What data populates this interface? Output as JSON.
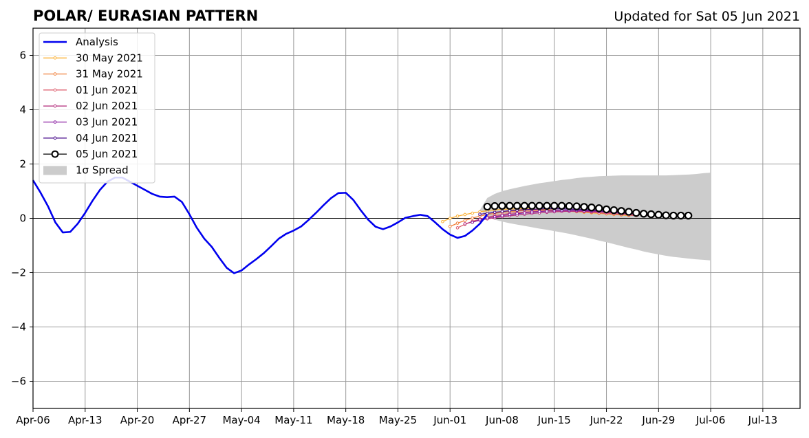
{
  "header": {
    "title": "POLAR/ EURASIAN  PATTERN",
    "updated": "Updated for Sat 05 Jun 2021"
  },
  "chart_data": {
    "type": "line",
    "title": "POLAR/ EURASIAN  PATTERN",
    "xlabel": "",
    "ylabel": "",
    "x_start": "2021-04-06",
    "x_end": "2021-07-18",
    "ylim": [
      -7,
      7
    ],
    "yticks": [
      -6,
      -4,
      -2,
      0,
      2,
      4,
      6
    ],
    "ytick_labels": [
      "−6",
      "−4",
      "−2",
      "0",
      "2",
      "4",
      "6"
    ],
    "xticks": [
      "2021-04-06",
      "2021-04-13",
      "2021-04-20",
      "2021-04-27",
      "2021-05-04",
      "2021-05-11",
      "2021-05-18",
      "2021-05-25",
      "2021-06-01",
      "2021-06-08",
      "2021-06-15",
      "2021-06-22",
      "2021-06-29",
      "2021-07-06",
      "2021-07-13"
    ],
    "xtick_labels": [
      "Apr-06",
      "Apr-13",
      "Apr-20",
      "Apr-27",
      "May-04",
      "May-11",
      "May-18",
      "May-25",
      "Jun-01",
      "Jun-08",
      "Jun-15",
      "Jun-22",
      "Jun-29",
      "Jul-06",
      "Jul-13"
    ],
    "grid": true,
    "legend_position": "top-left",
    "analysis": {
      "name": "Analysis",
      "color": "#0000ee",
      "start_date": "2021-04-06",
      "values": [
        1.4,
        0.95,
        0.45,
        -0.15,
        -0.52,
        -0.5,
        -0.2,
        0.2,
        0.65,
        1.05,
        1.35,
        1.5,
        1.5,
        1.35,
        1.2,
        1.05,
        0.9,
        0.8,
        0.78,
        0.8,
        0.6,
        0.15,
        -0.35,
        -0.75,
        -1.05,
        -1.45,
        -1.82,
        -2.02,
        -1.92,
        -1.7,
        -1.5,
        -1.28,
        -1.02,
        -0.75,
        -0.57,
        -0.45,
        -0.3,
        -0.06,
        0.2,
        0.48,
        0.74,
        0.93,
        0.94,
        0.68,
        0.3,
        -0.05,
        -0.31,
        -0.4,
        -0.3,
        -0.15,
        0.02,
        0.08,
        0.13,
        0.08,
        -0.15,
        -0.4,
        -0.6,
        -0.72,
        -0.65,
        -0.45,
        -0.2,
        0.15
      ]
    },
    "spread": {
      "name": "1σ Spread",
      "color": "#cccccc",
      "start_date": "2021-06-05",
      "upper": [
        0.3,
        0.75,
        0.9,
        1.0,
        1.07,
        1.13,
        1.19,
        1.24,
        1.29,
        1.33,
        1.37,
        1.41,
        1.44,
        1.48,
        1.51,
        1.53,
        1.55,
        1.56,
        1.57,
        1.58,
        1.58,
        1.58,
        1.58,
        1.58,
        1.58,
        1.58,
        1.59,
        1.6,
        1.61,
        1.63,
        1.66,
        1.68
      ],
      "lower": [
        0.3,
        0.05,
        -0.05,
        -0.12,
        -0.18,
        -0.23,
        -0.28,
        -0.33,
        -0.38,
        -0.42,
        -0.47,
        -0.52,
        -0.57,
        -0.63,
        -0.69,
        -0.75,
        -0.82,
        -0.88,
        -0.95,
        -1.02,
        -1.09,
        -1.15,
        -1.22,
        -1.28,
        -1.33,
        -1.38,
        -1.42,
        -1.45,
        -1.48,
        -1.51,
        -1.53,
        -1.55
      ]
    },
    "series": [
      {
        "name": "30 May 2021",
        "color": "#fbb034",
        "start_date": "2021-05-31",
        "values": [
          -0.12,
          0.0,
          0.08,
          0.14,
          0.19,
          0.24,
          0.28,
          0.31,
          0.33,
          0.34,
          0.35,
          0.35,
          0.34,
          0.33,
          0.32,
          0.3,
          0.28,
          0.26,
          0.24,
          0.22,
          0.2,
          0.18,
          0.16,
          0.14,
          0.12,
          0.1
        ]
      },
      {
        "name": "31 May 2021",
        "color": "#f0803c",
        "start_date": "2021-06-01",
        "values": [
          -0.3,
          -0.18,
          -0.08,
          0.01,
          0.08,
          0.14,
          0.18,
          0.22,
          0.25,
          0.27,
          0.29,
          0.3,
          0.3,
          0.3,
          0.29,
          0.28,
          0.27,
          0.26,
          0.24,
          0.22,
          0.2,
          0.18,
          0.16,
          0.14,
          0.12,
          0.1
        ]
      },
      {
        "name": "01 Jun 2021",
        "color": "#dd5a6a",
        "start_date": "2021-06-02",
        "values": [
          -0.35,
          -0.22,
          -0.11,
          -0.03,
          0.04,
          0.1,
          0.14,
          0.18,
          0.21,
          0.23,
          0.25,
          0.26,
          0.27,
          0.27,
          0.27,
          0.26,
          0.25,
          0.24,
          0.22,
          0.2,
          0.18,
          0.16,
          0.14,
          0.12,
          0.1
        ]
      },
      {
        "name": "02 Jun 2021",
        "color": "#b5317e",
        "start_date": "2021-06-03",
        "values": [
          -0.2,
          -0.14,
          -0.07,
          -0.02,
          0.02,
          0.06,
          0.09,
          0.12,
          0.15,
          0.18,
          0.2,
          0.22,
          0.24,
          0.25,
          0.26,
          0.26,
          0.26,
          0.25,
          0.24,
          0.22,
          0.2,
          0.18,
          0.16,
          0.14,
          0.12,
          0.1
        ]
      },
      {
        "name": "03 Jun 2021",
        "color": "#8719a0",
        "start_date": "2021-06-04",
        "values": [
          -0.15,
          -0.05,
          0.02,
          0.06,
          0.1,
          0.14,
          0.17,
          0.2,
          0.23,
          0.25,
          0.27,
          0.28,
          0.29,
          0.29,
          0.29,
          0.28,
          0.27,
          0.26,
          0.24,
          0.22,
          0.2,
          0.18,
          0.16,
          0.14,
          0.12,
          0.1
        ]
      },
      {
        "name": "04 Jun 2021",
        "color": "#4a0c8c",
        "start_date": "2021-06-05",
        "values": [
          0.15,
          0.18,
          0.22,
          0.25,
          0.28,
          0.3,
          0.32,
          0.33,
          0.34,
          0.35,
          0.35,
          0.35,
          0.34,
          0.33,
          0.32,
          0.3,
          0.28,
          0.26,
          0.24,
          0.22,
          0.2,
          0.18,
          0.16,
          0.14,
          0.12,
          0.1
        ]
      },
      {
        "name": "05 Jun 2021",
        "color": "#000000",
        "start_date": "2021-06-06",
        "values": [
          0.43,
          0.45,
          0.46,
          0.46,
          0.46,
          0.46,
          0.46,
          0.46,
          0.46,
          0.46,
          0.46,
          0.45,
          0.44,
          0.42,
          0.4,
          0.37,
          0.33,
          0.3,
          0.27,
          0.24,
          0.2,
          0.17,
          0.15,
          0.13,
          0.11,
          0.1,
          0.1,
          0.1
        ]
      }
    ]
  }
}
